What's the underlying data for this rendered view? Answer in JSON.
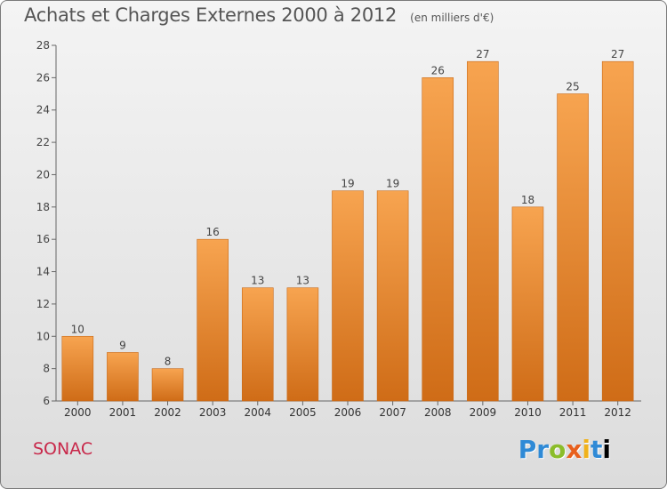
{
  "chart_data": {
    "type": "bar",
    "title": "Achats et Charges Externes 2000 à 2012",
    "subtitle": "(en milliers d'€)",
    "categories": [
      "2000",
      "2001",
      "2002",
      "2003",
      "2004",
      "2005",
      "2006",
      "2007",
      "2008",
      "2009",
      "2010",
      "2011",
      "2012"
    ],
    "values": [
      10,
      9,
      8,
      16,
      13,
      13,
      19,
      19,
      26,
      27,
      18,
      25,
      27
    ],
    "ylim": [
      6,
      28
    ],
    "yticks": [
      6,
      8,
      10,
      12,
      14,
      16,
      18,
      20,
      22,
      24,
      26,
      28
    ],
    "grid": false,
    "bar_color": "#f08a2a",
    "bar_color_light": "#f9a85a",
    "bar_color_dark": "#cf6a14"
  },
  "footer": {
    "town": "SONAC",
    "logo": "Proxiti"
  }
}
